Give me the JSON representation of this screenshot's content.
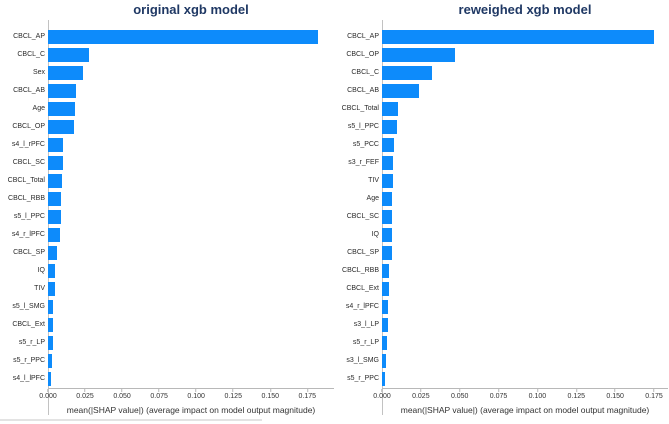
{
  "page": {
    "background": "#ffffff"
  },
  "colors": {
    "bar": "#0d8bfb",
    "title": "#1f3864",
    "spine": "#b8b8b8",
    "tick_label": "#333333",
    "ylabel": "#2b2b2b"
  },
  "chart_data": [
    {
      "type": "bar",
      "orientation": "horizontal",
      "title": "original xgb model",
      "xlabel": "mean(|SHAP value|) (average impact on model output magnitude)",
      "xlim": [
        0,
        0.193
      ],
      "xticks": [
        0.0,
        0.025,
        0.05,
        0.075,
        0.1,
        0.125,
        0.15,
        0.175
      ],
      "xtick_labels": [
        "0.000",
        "0.025",
        "0.050",
        "0.075",
        "0.100",
        "0.125",
        "0.150",
        "0.175"
      ],
      "grid": false,
      "legend": null,
      "categories": [
        "CBCL_AP",
        "CBCL_C",
        "Sex",
        "CBCL_AB",
        "Age",
        "CBCL_OP",
        "s4_l_rPFC",
        "CBCL_SC",
        "CBCL_Total",
        "CBCL_RBB",
        "s5_l_PPC",
        "s4_r_lPFC",
        "CBCL_SP",
        "IQ",
        "TIV",
        "s5_l_SMG",
        "CBCL_Ext",
        "s5_r_LP",
        "s5_r_PPC",
        "s4_l_lPFC"
      ],
      "values": [
        0.182,
        0.028,
        0.0235,
        0.019,
        0.0185,
        0.0175,
        0.0103,
        0.0099,
        0.0092,
        0.009,
        0.0086,
        0.0084,
        0.0058,
        0.0048,
        0.0046,
        0.0036,
        0.0035,
        0.0031,
        0.0026,
        0.0019
      ]
    },
    {
      "type": "bar",
      "orientation": "horizontal",
      "title": "reweighed xgb model",
      "xlabel": "mean(|SHAP value|) (average impact on model output magnitude)",
      "xlim": [
        0,
        0.184
      ],
      "xticks": [
        0.0,
        0.025,
        0.05,
        0.075,
        0.1,
        0.125,
        0.15,
        0.175
      ],
      "xtick_labels": [
        "0.000",
        "0.025",
        "0.050",
        "0.075",
        "0.100",
        "0.125",
        "0.150",
        "0.175"
      ],
      "grid": false,
      "legend": null,
      "categories": [
        "CBCL_AP",
        "CBCL_OP",
        "CBCL_C",
        "CBCL_AB",
        "CBCL_Total",
        "s5_l_PPC",
        "s5_PCC",
        "s3_r_FEF",
        "TIV",
        "Age",
        "CBCL_SC",
        "IQ",
        "CBCL_SP",
        "CBCL_RBB",
        "CBCL_Ext",
        "s4_r_lPFC",
        "s3_l_LP",
        "s5_r_LP",
        "s3_l_SMG",
        "s5_r_PPC"
      ],
      "values": [
        0.175,
        0.047,
        0.032,
        0.024,
        0.0102,
        0.0094,
        0.0078,
        0.007,
        0.0068,
        0.0066,
        0.0065,
        0.0064,
        0.0062,
        0.0048,
        0.0045,
        0.0038,
        0.0037,
        0.0032,
        0.0026,
        0.0019
      ]
    }
  ]
}
